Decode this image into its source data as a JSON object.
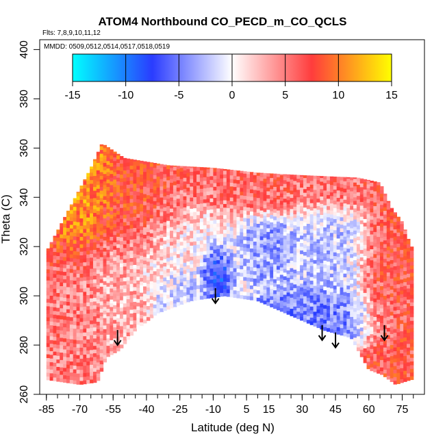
{
  "chart_data": {
    "type": "heatmap",
    "title": "ATOM4 Northbound CO_PECD_m_CO_QCLS",
    "flights_text": "Flts: 7,8,9,10,11,12",
    "dates_text": "MMDD: 0509,0512,0514,0517,0518,0519",
    "xlabel": "Latitude (deg N)",
    "ylabel": "Theta (C)",
    "xlim": [
      -88,
      85
    ],
    "ylim": [
      260,
      404
    ],
    "x_ticks": [
      -85,
      -70,
      -55,
      -40,
      -25,
      -10,
      5,
      15,
      30,
      45,
      60,
      75
    ],
    "x_tick_labels": [
      "-85",
      "-70",
      "-55",
      "-40",
      "-25",
      "-10",
      "5",
      "15",
      "30",
      "45",
      "60",
      "75"
    ],
    "x_minor_step": 5,
    "y_ticks": [
      260,
      280,
      300,
      320,
      340,
      360,
      380,
      400
    ],
    "y_tick_labels": [
      "260",
      "280",
      "300",
      "320",
      "340",
      "360",
      "380",
      "400"
    ],
    "colorbar": {
      "range": [
        -15,
        15
      ],
      "ticks": [
        -15,
        -10,
        -5,
        0,
        5,
        10,
        15
      ],
      "tick_labels": [
        "-15",
        "-10",
        "-5",
        "0",
        "5",
        "10",
        "15"
      ],
      "stops": [
        "#00ffff",
        "#2a3cff",
        "#ffffff",
        "#ff3c3c",
        "#ffff00"
      ]
    },
    "grid": false,
    "legend_position": "top",
    "arrows": [
      {
        "lat": -53,
        "theta": 280
      },
      {
        "lat": -9,
        "theta": 297
      },
      {
        "lat": 39,
        "theta": 282
      },
      {
        "lat": 45,
        "theta": 279
      },
      {
        "lat": 67,
        "theta": 282
      }
    ],
    "field_extent": {
      "lat": [
        -85,
        79
      ],
      "theta_top": [
        {
          "lat": -85,
          "theta": 318
        },
        {
          "lat": -75,
          "theta": 335
        },
        {
          "lat": -65,
          "theta": 352
        },
        {
          "lat": -60,
          "theta": 362
        },
        {
          "lat": -50,
          "theta": 356
        },
        {
          "lat": -30,
          "theta": 353
        },
        {
          "lat": -10,
          "theta": 352
        },
        {
          "lat": 10,
          "theta": 350
        },
        {
          "lat": 30,
          "theta": 349
        },
        {
          "lat": 55,
          "theta": 348
        },
        {
          "lat": 65,
          "theta": 346
        },
        {
          "lat": 70,
          "theta": 336
        },
        {
          "lat": 75,
          "theta": 330
        },
        {
          "lat": 79,
          "theta": 320
        }
      ],
      "theta_bottom": [
        {
          "lat": -85,
          "theta": 266
        },
        {
          "lat": -70,
          "theta": 264
        },
        {
          "lat": -62,
          "theta": 265
        },
        {
          "lat": -58,
          "theta": 275
        },
        {
          "lat": -52,
          "theta": 278
        },
        {
          "lat": -45,
          "theta": 286
        },
        {
          "lat": -35,
          "theta": 293
        },
        {
          "lat": -20,
          "theta": 298
        },
        {
          "lat": -5,
          "theta": 300
        },
        {
          "lat": 10,
          "theta": 298
        },
        {
          "lat": 25,
          "theta": 292
        },
        {
          "lat": 40,
          "theta": 286
        },
        {
          "lat": 52,
          "theta": 283
        },
        {
          "lat": 60,
          "theta": 270
        },
        {
          "lat": 66,
          "theta": 268
        },
        {
          "lat": 72,
          "theta": 264
        },
        {
          "lat": 79,
          "theta": 266
        }
      ]
    },
    "regions": [
      {
        "lat": [
          -85,
          -65
        ],
        "theta": [
          264,
          320
        ],
        "value": 5
      },
      {
        "lat": [
          -85,
          -60
        ],
        "theta": [
          320,
          362
        ],
        "value": 11
      },
      {
        "lat": [
          -60,
          -30
        ],
        "theta": [
          320,
          356
        ],
        "value": 8
      },
      {
        "lat": [
          -30,
          70
        ],
        "theta": [
          336,
          352
        ],
        "value": 6
      },
      {
        "lat": [
          -62,
          -45
        ],
        "theta": [
          278,
          320
        ],
        "value": 3
      },
      {
        "lat": [
          -45,
          0
        ],
        "theta": [
          300,
          336
        ],
        "value": 1
      },
      {
        "lat": [
          -12,
          -6
        ],
        "theta": [
          302,
          318
        ],
        "value": -12
      },
      {
        "lat": [
          5,
          20
        ],
        "theta": [
          310,
          330
        ],
        "value": -4
      },
      {
        "lat": [
          20,
          60
        ],
        "theta": [
          283,
          300
        ],
        "value": -5
      },
      {
        "lat": [
          25,
          55
        ],
        "theta": [
          300,
          336
        ],
        "value": -2
      },
      {
        "lat": [
          60,
          79
        ],
        "theta": [
          268,
          336
        ],
        "value": 7
      },
      {
        "lat": [
          -30,
          -15
        ],
        "theta": [
          293,
          310
        ],
        "value": -3
      }
    ]
  }
}
